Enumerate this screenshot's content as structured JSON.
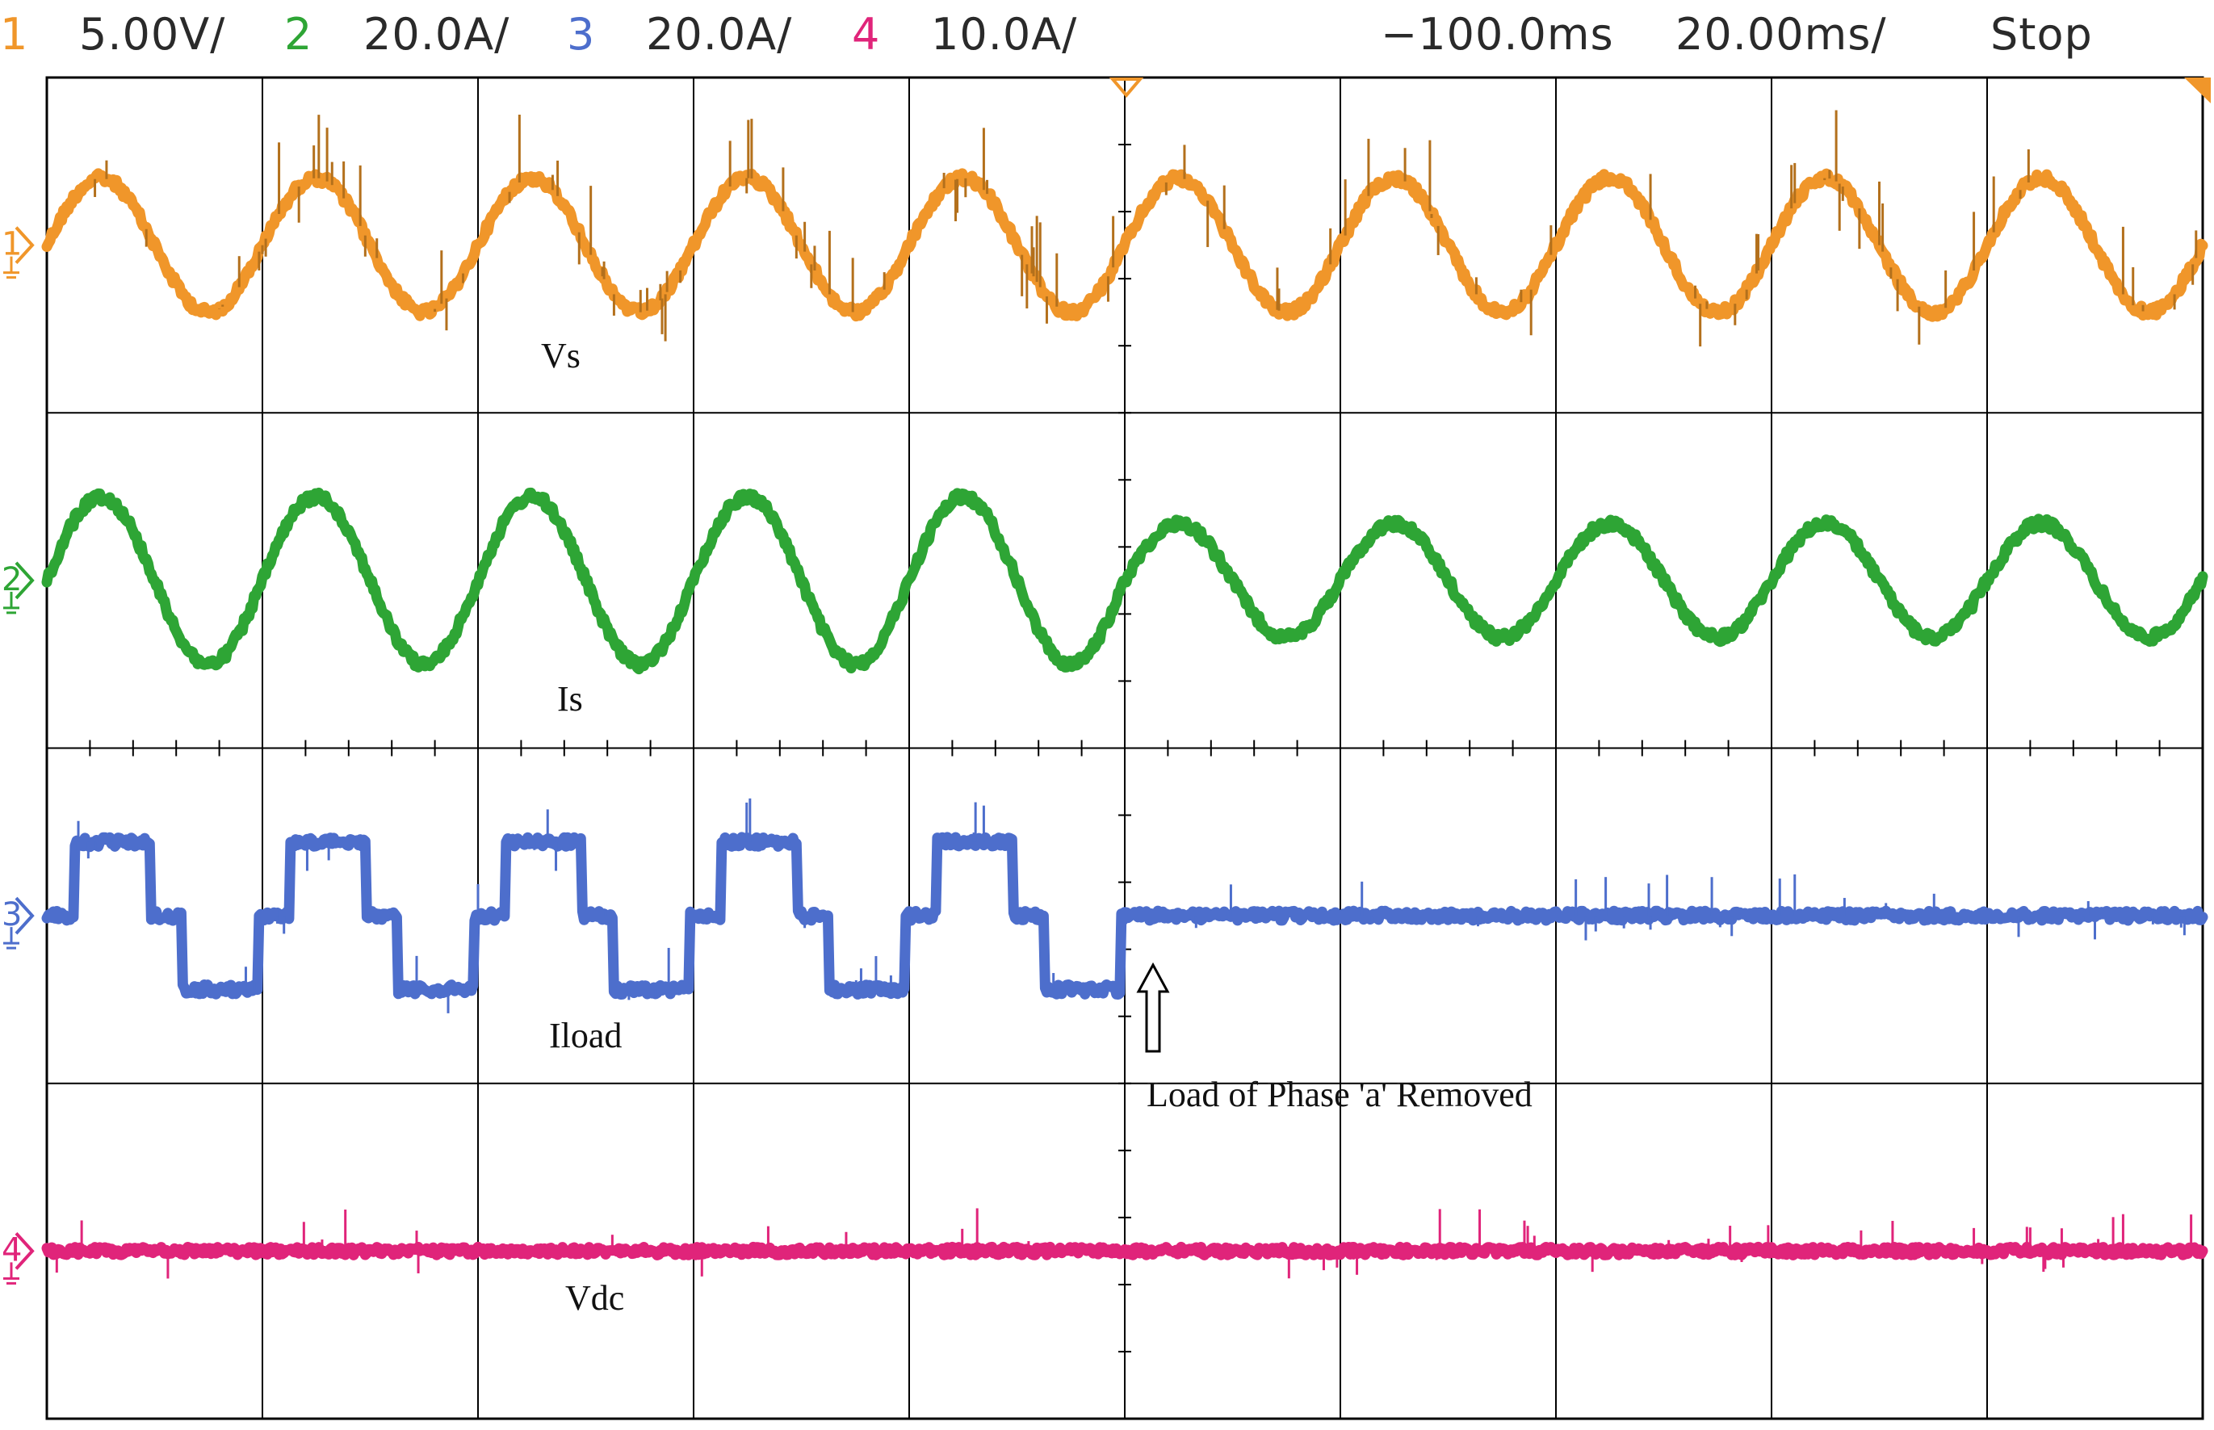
{
  "header": {
    "channels": [
      {
        "number": "1",
        "scale": "5.00V/",
        "color": "#f0962a"
      },
      {
        "number": "2",
        "scale": "20.0A/",
        "color": "#2ea535"
      },
      {
        "number": "3",
        "scale": "20.0A/",
        "color": "#4d6ecc"
      },
      {
        "number": "4",
        "scale": "10.0A/",
        "color": "#e0247a"
      }
    ],
    "delay": "−100.0ms",
    "timebase": "20.00ms/",
    "run_state": "Stop"
  },
  "chart_data": {
    "type": "line",
    "title": "",
    "xlabel": "",
    "ylabel": "",
    "grid": true,
    "divisions": {
      "x": 10,
      "y": 4
    },
    "x_range_div": [
      0,
      10
    ],
    "event": {
      "time_div": 5.0,
      "label": "Load of Phase 'a' Removed"
    },
    "series": [
      {
        "name": "Vs",
        "channel": "1",
        "color": "#f0962a",
        "label": "Vs",
        "description": "sinusoidal supply voltage with switching spikes",
        "offset_div": 0.5,
        "cycles": 10,
        "amplitude_div": 0.2,
        "amplitude_after_event_div": 0.2
      },
      {
        "name": "Is",
        "channel": "2",
        "color": "#2ea535",
        "label": "Is",
        "description": "sinusoidal source current, amplitude reduced after load removal",
        "offset_div": 1.5,
        "cycles": 10,
        "amplitude_div": 0.25,
        "amplitude_after_event_div": 0.17
      },
      {
        "name": "Iload",
        "channel": "3",
        "color": "#4d6ecc",
        "label": "Iload",
        "description": "quasi-square load current, drops to zero after load removal",
        "offset_div": 2.5,
        "cycles": 10,
        "amplitude_div": 0.22,
        "amplitude_after_event_div": 0.0
      },
      {
        "name": "Vdc",
        "channel": "4",
        "color": "#e0247a",
        "label": "Vdc",
        "description": "constant DC link voltage",
        "offset_div": 3.5,
        "cycles": 0,
        "amplitude_div": 0.0,
        "amplitude_after_event_div": 0.0
      }
    ]
  }
}
